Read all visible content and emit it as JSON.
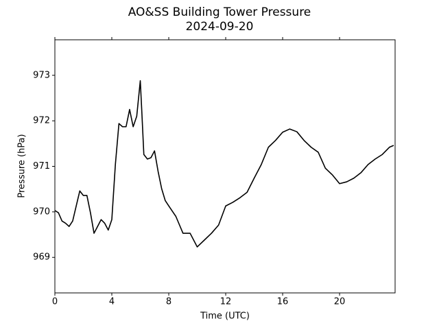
{
  "chart_data": {
    "type": "line",
    "title": "AO&SS Building Tower Pressure",
    "subtitle": "2024-09-20",
    "x_label": "Time (UTC)",
    "y_label": "Pressure (hPa)",
    "xlim": [
      0,
      23.9
    ],
    "ylim": [
      968.22,
      973.78
    ],
    "xticks": [
      0,
      4,
      8,
      12,
      16,
      20
    ],
    "yticks": [
      969,
      970,
      971,
      972,
      973
    ],
    "series": [
      {
        "name": "Pressure",
        "color": "#000000",
        "x": [
          0,
          0.25,
          0.5,
          0.75,
          1.0,
          1.25,
          1.5,
          1.75,
          2.0,
          2.25,
          2.5,
          2.75,
          3.0,
          3.25,
          3.5,
          3.75,
          4.0,
          4.25,
          4.5,
          4.75,
          5.0,
          5.25,
          5.5,
          5.75,
          6.0,
          6.1,
          6.25,
          6.5,
          6.75,
          7.0,
          7.25,
          7.5,
          7.75,
          8.0,
          8.5,
          9.0,
          9.5,
          10.0,
          10.5,
          11.0,
          11.5,
          12.0,
          12.5,
          13.0,
          13.5,
          14.0,
          14.5,
          15.0,
          15.5,
          16.0,
          16.5,
          17.0,
          17.5,
          18.0,
          18.5,
          19.0,
          19.5,
          20.0,
          20.5,
          21.0,
          21.5,
          22.0,
          22.5,
          23.0,
          23.5,
          23.8
        ],
        "values": [
          970.03,
          969.98,
          969.8,
          969.75,
          969.68,
          969.8,
          970.13,
          970.46,
          970.36,
          970.36,
          969.98,
          969.53,
          969.68,
          969.83,
          969.75,
          969.6,
          969.83,
          971.04,
          971.94,
          971.87,
          971.87,
          972.25,
          971.87,
          972.1,
          972.88,
          972.25,
          971.26,
          971.16,
          971.19,
          971.34,
          970.89,
          970.51,
          970.25,
          970.13,
          969.9,
          969.53,
          969.53,
          969.23,
          969.38,
          969.53,
          969.71,
          970.13,
          970.21,
          970.31,
          970.43,
          970.74,
          971.04,
          971.42,
          971.57,
          971.75,
          971.82,
          971.76,
          971.57,
          971.42,
          971.31,
          970.96,
          970.81,
          970.62,
          970.66,
          970.74,
          970.86,
          971.04,
          971.16,
          971.26,
          971.42,
          971.46
        ]
      }
    ]
  }
}
